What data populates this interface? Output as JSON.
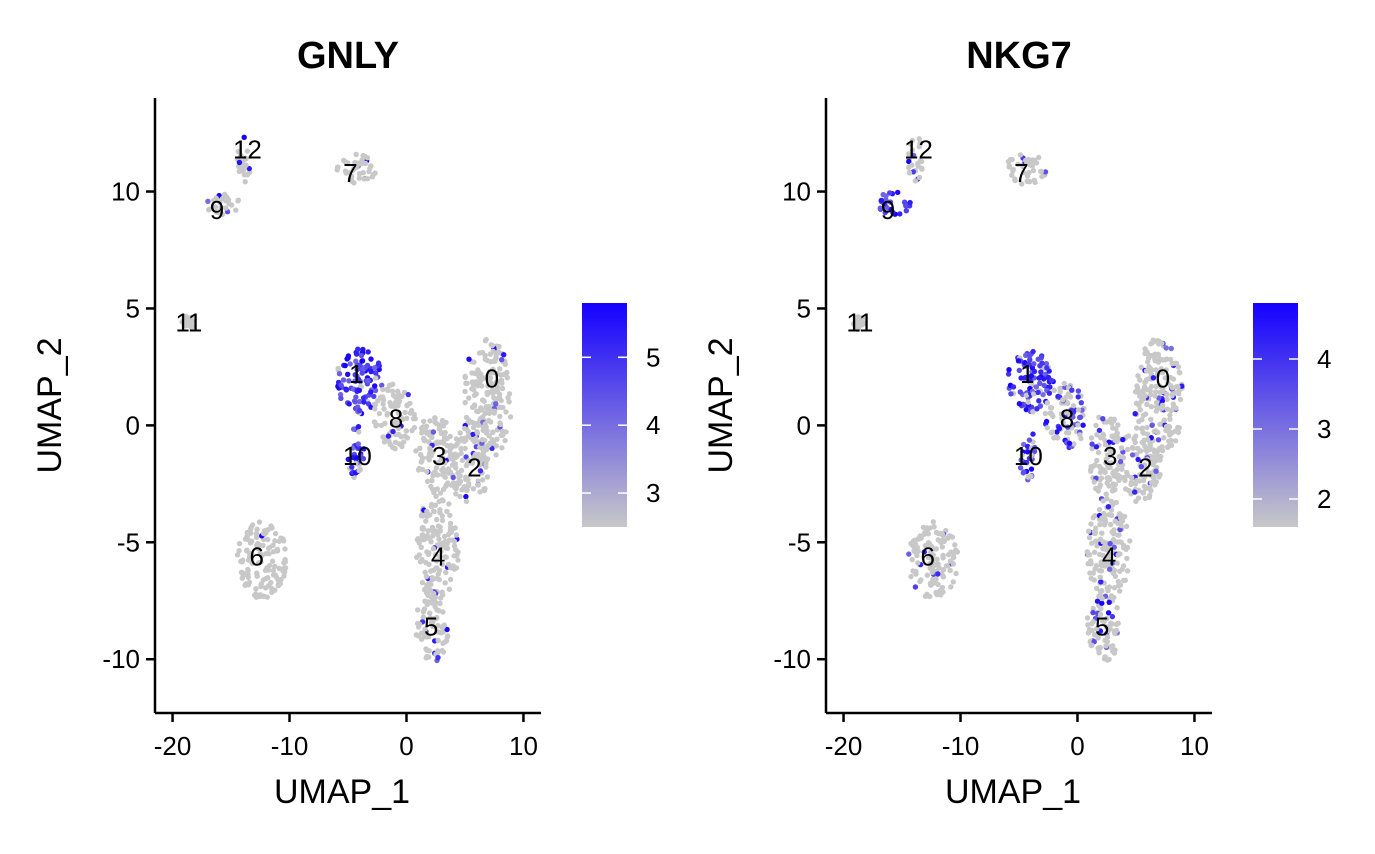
{
  "colors": {
    "low": "#c8c8c8",
    "high": "#1500ff",
    "axis": "#000000",
    "text": "#000000"
  },
  "chart_data": [
    {
      "type": "scatter",
      "title": "GNLY",
      "xlabel": "UMAP_1",
      "ylabel": "UMAP_2",
      "xlim": [
        -21.5,
        11.5
      ],
      "ylim": [
        -12.3,
        14
      ],
      "xticks": [
        -20,
        -10,
        0,
        10
      ],
      "xtick_labels": [
        "-20",
        "-10",
        "0",
        "10"
      ],
      "yticks": [
        -10,
        -5,
        0,
        5,
        10
      ],
      "ytick_labels": [
        "-10",
        "-5",
        "0",
        "5",
        "10"
      ],
      "legend": {
        "placement": "right",
        "range": [
          2.5,
          5.8
        ],
        "ticks": [
          3,
          4,
          5
        ],
        "tick_labels": [
          "3",
          "4",
          "5"
        ]
      },
      "cluster_labels": [
        {
          "label": "0",
          "x": 7.3,
          "y": 2.0
        },
        {
          "label": "1",
          "x": -4.3,
          "y": 2.2
        },
        {
          "label": "2",
          "x": 5.8,
          "y": -1.8
        },
        {
          "label": "3",
          "x": 2.8,
          "y": -1.3
        },
        {
          "label": "4",
          "x": 2.7,
          "y": -5.6
        },
        {
          "label": "5",
          "x": 2.1,
          "y": -8.6
        },
        {
          "label": "6",
          "x": -12.8,
          "y": -5.6
        },
        {
          "label": "7",
          "x": -4.8,
          "y": 10.8
        },
        {
          "label": "8",
          "x": -0.9,
          "y": 0.3
        },
        {
          "label": "9",
          "x": -16.2,
          "y": 9.2
        },
        {
          "label": "10",
          "x": -4.2,
          "y": -1.3
        },
        {
          "label": "11",
          "x": -18.6,
          "y": 4.4
        },
        {
          "label": "12",
          "x": -13.6,
          "y": 11.8
        }
      ],
      "clusters": [
        {
          "id": "0",
          "x": [
            4.8,
            9.0
          ],
          "y": [
            -1.5,
            3.7
          ],
          "expr": 0.05
        },
        {
          "id": "1",
          "x": [
            -6.0,
            -2.0
          ],
          "y": [
            0.5,
            3.3
          ],
          "expr": 0.9
        },
        {
          "id": "2",
          "x": [
            3.5,
            7.2
          ],
          "y": [
            -3.3,
            0.0
          ],
          "expr": 0.08
        },
        {
          "id": "3",
          "x": [
            0.8,
            4.0
          ],
          "y": [
            -3.0,
            0.5
          ],
          "expr": 0.05
        },
        {
          "id": "4",
          "x": [
            0.8,
            4.5
          ],
          "y": [
            -7.5,
            -3.0
          ],
          "expr": 0.05
        },
        {
          "id": "5",
          "x": [
            0.8,
            3.6
          ],
          "y": [
            -10.2,
            -7.0
          ],
          "expr": 0.06
        },
        {
          "id": "6",
          "x": [
            -14.5,
            -10.2
          ],
          "y": [
            -7.4,
            -4.1
          ],
          "expr": 0.02
        },
        {
          "id": "7",
          "x": [
            -6.2,
            -2.6
          ],
          "y": [
            10.3,
            11.6
          ],
          "expr": 0.02
        },
        {
          "id": "8",
          "x": [
            -2.8,
            0.8
          ],
          "y": [
            -1.0,
            1.8
          ],
          "expr": 0.06
        },
        {
          "id": "9",
          "x": [
            -17.2,
            -14.2
          ],
          "y": [
            9.0,
            10.0
          ],
          "expr": 0.12
        },
        {
          "id": "10",
          "x": [
            -5.0,
            -3.6
          ],
          "y": [
            -2.5,
            0.0
          ],
          "expr": 0.7
        },
        {
          "id": "11",
          "x": [
            -19.2,
            -18.2
          ],
          "y": [
            4.1,
            4.7
          ],
          "expr": 0.02
        },
        {
          "id": "12",
          "x": [
            -14.5,
            -13.2
          ],
          "y": [
            10.4,
            12.4
          ],
          "expr": 0.05
        }
      ]
    },
    {
      "type": "scatter",
      "title": "NKG7",
      "xlabel": "UMAP_1",
      "ylabel": "UMAP_2",
      "xlim": [
        -21.5,
        11.5
      ],
      "ylim": [
        -12.3,
        14
      ],
      "xticks": [
        -20,
        -10,
        0,
        10
      ],
      "xtick_labels": [
        "-20",
        "-10",
        "0",
        "10"
      ],
      "yticks": [
        -10,
        -5,
        0,
        5,
        10
      ],
      "ytick_labels": [
        "-10",
        "-5",
        "0",
        "5",
        "10"
      ],
      "legend": {
        "placement": "right",
        "range": [
          1.6,
          4.8
        ],
        "ticks": [
          2,
          3,
          4
        ],
        "tick_labels": [
          "2",
          "3",
          "4"
        ]
      },
      "cluster_labels": [
        {
          "label": "0",
          "x": 7.3,
          "y": 2.0
        },
        {
          "label": "1",
          "x": -4.3,
          "y": 2.2
        },
        {
          "label": "2",
          "x": 5.8,
          "y": -1.8
        },
        {
          "label": "3",
          "x": 2.8,
          "y": -1.3
        },
        {
          "label": "4",
          "x": 2.7,
          "y": -5.6
        },
        {
          "label": "5",
          "x": 2.1,
          "y": -8.6
        },
        {
          "label": "6",
          "x": -12.8,
          "y": -5.6
        },
        {
          "label": "7",
          "x": -4.8,
          "y": 10.8
        },
        {
          "label": "8",
          "x": -0.9,
          "y": 0.3
        },
        {
          "label": "9",
          "x": -16.2,
          "y": 9.2
        },
        {
          "label": "10",
          "x": -4.2,
          "y": -1.3
        },
        {
          "label": "11",
          "x": -18.6,
          "y": 4.4
        },
        {
          "label": "12",
          "x": -13.6,
          "y": 11.8
        }
      ],
      "clusters": [
        {
          "id": "0",
          "x": [
            4.8,
            9.0
          ],
          "y": [
            -1.5,
            3.7
          ],
          "expr": 0.1
        },
        {
          "id": "1",
          "x": [
            -6.0,
            -2.0
          ],
          "y": [
            0.5,
            3.3
          ],
          "expr": 0.9
        },
        {
          "id": "2",
          "x": [
            3.5,
            7.2
          ],
          "y": [
            -3.3,
            0.0
          ],
          "expr": 0.12
        },
        {
          "id": "3",
          "x": [
            0.8,
            4.0
          ],
          "y": [
            -3.0,
            0.5
          ],
          "expr": 0.1
        },
        {
          "id": "4",
          "x": [
            0.8,
            4.5
          ],
          "y": [
            -7.5,
            -3.0
          ],
          "expr": 0.12
        },
        {
          "id": "5",
          "x": [
            0.8,
            3.6
          ],
          "y": [
            -10.2,
            -7.0
          ],
          "expr": 0.15
        },
        {
          "id": "6",
          "x": [
            -14.5,
            -10.2
          ],
          "y": [
            -7.4,
            -4.1
          ],
          "expr": 0.05
        },
        {
          "id": "7",
          "x": [
            -6.2,
            -2.6
          ],
          "y": [
            10.3,
            11.6
          ],
          "expr": 0.05
        },
        {
          "id": "8",
          "x": [
            -2.8,
            0.8
          ],
          "y": [
            -1.0,
            1.8
          ],
          "expr": 0.35
        },
        {
          "id": "9",
          "x": [
            -17.2,
            -14.2
          ],
          "y": [
            9.0,
            10.0
          ],
          "expr": 0.95
        },
        {
          "id": "10",
          "x": [
            -5.0,
            -3.6
          ],
          "y": [
            -2.5,
            0.0
          ],
          "expr": 0.75
        },
        {
          "id": "11",
          "x": [
            -19.2,
            -18.2
          ],
          "y": [
            4.1,
            4.7
          ],
          "expr": 0.1
        },
        {
          "id": "12",
          "x": [
            -14.5,
            -13.2
          ],
          "y": [
            10.4,
            12.4
          ],
          "expr": 0.2
        }
      ]
    }
  ]
}
